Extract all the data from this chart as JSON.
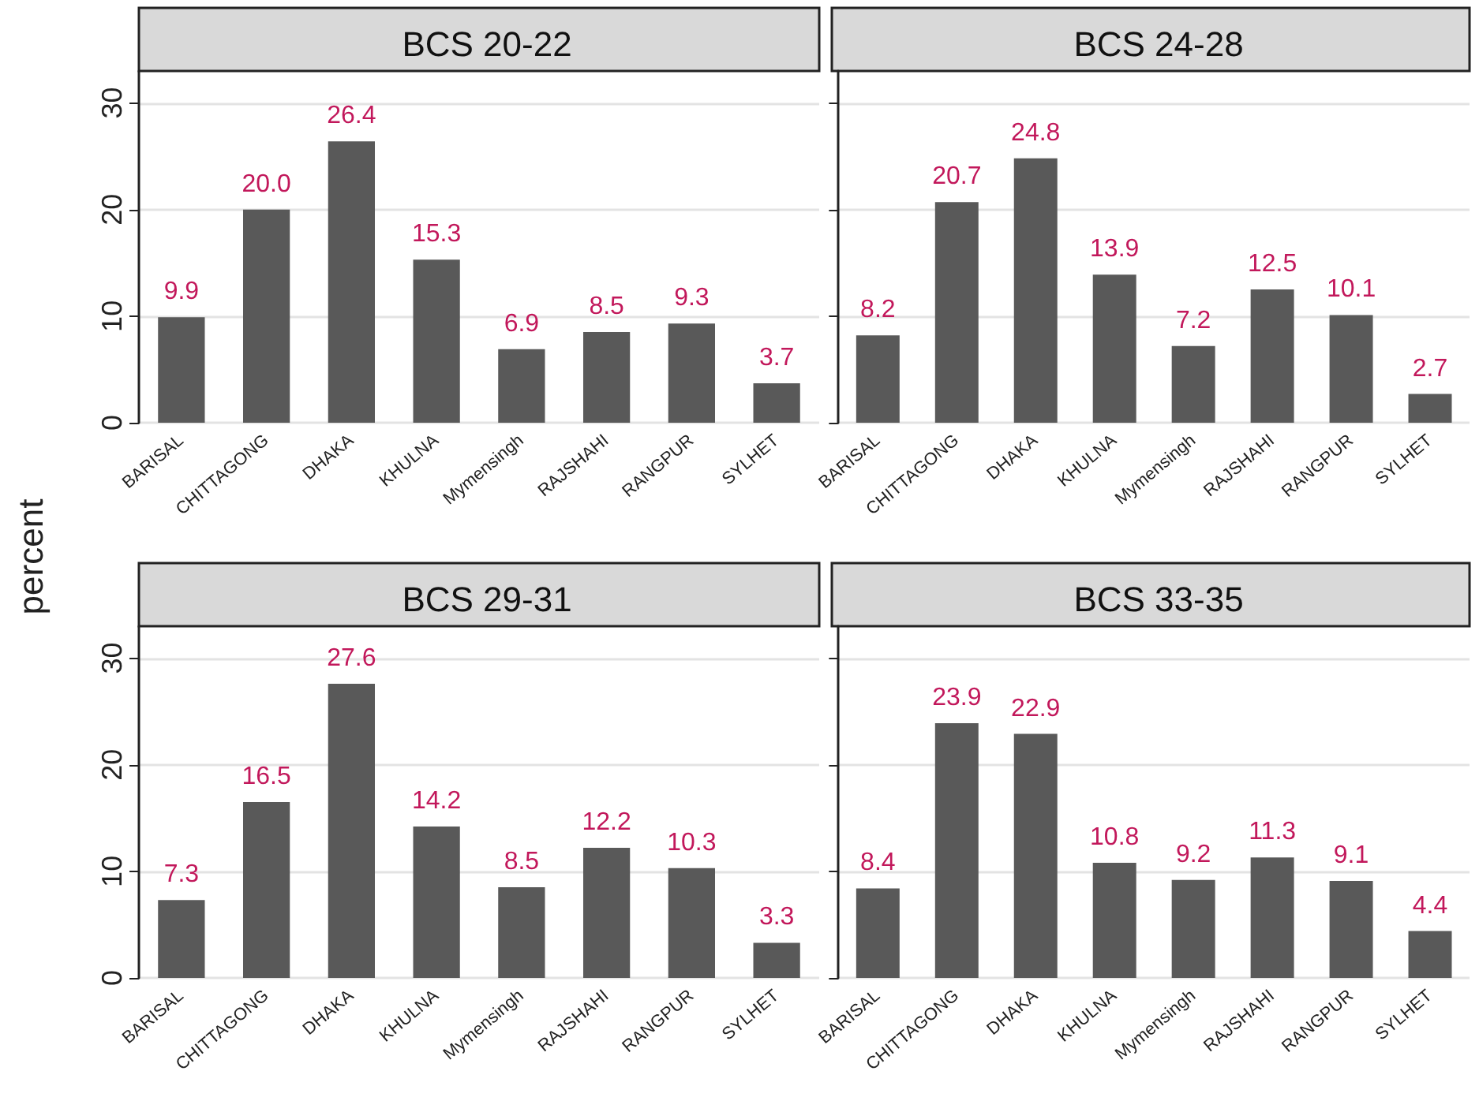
{
  "chart_data": [
    {
      "type": "bar",
      "title": "BCS 20-22",
      "ylabel": "percent",
      "categories": [
        "BARISAL",
        "CHITTAGONG",
        "DHAKA",
        "KHULNA",
        "Mymensingh",
        "RAJSHAHI",
        "RANGPUR",
        "SYLHET"
      ],
      "values": [
        9.9,
        20.0,
        26.4,
        15.3,
        6.9,
        8.5,
        9.3,
        3.7
      ],
      "value_labels": [
        "9.9",
        "20.0",
        "26.4",
        "15.3",
        "6.9",
        "8.5",
        "9.3",
        "3.7"
      ],
      "color": "#595959",
      "ylim": [
        0,
        33
      ],
      "yticks": [
        0,
        10,
        20,
        30
      ],
      "grid": "y"
    },
    {
      "type": "bar",
      "title": "BCS 24-28",
      "categories": [
        "BARISAL",
        "CHITTAGONG",
        "DHAKA",
        "KHULNA",
        "Mymensingh",
        "RAJSHAHI",
        "RANGPUR",
        "SYLHET"
      ],
      "values": [
        8.2,
        20.7,
        24.8,
        13.9,
        7.2,
        12.5,
        10.1,
        2.7
      ],
      "value_labels": [
        "8.2",
        "20.7",
        "24.8",
        "13.9",
        "7.2",
        "12.5",
        "10.1",
        "2.7"
      ],
      "color": "#595959",
      "ylim": [
        0,
        33
      ],
      "yticks": [
        0,
        10,
        20,
        30
      ],
      "grid": "y",
      "tick_labels": "x"
    },
    {
      "type": "bar",
      "title": "BCS 29-31",
      "categories": [
        "BARISAL",
        "CHITTAGONG",
        "DHAKA",
        "KHULNA",
        "Mymensingh",
        "RAJSHAHI",
        "RANGPUR",
        "SYLHET"
      ],
      "values": [
        7.3,
        16.5,
        27.6,
        14.2,
        8.5,
        12.2,
        10.3,
        3.3
      ],
      "value_labels": [
        "7.3",
        "16.5",
        "27.6",
        "14.2",
        "8.5",
        "12.2",
        "10.3",
        "3.3"
      ],
      "color": "#595959",
      "ylim": [
        0,
        33
      ],
      "yticks": [
        0,
        10,
        20,
        30
      ],
      "grid": "y"
    },
    {
      "type": "bar",
      "title": "BCS 33-35",
      "categories": [
        "BARISAL",
        "CHITTAGONG",
        "DHAKA",
        "KHULNA",
        "Mymensingh",
        "RAJSHAHI",
        "RANGPUR",
        "SYLHET"
      ],
      "values": [
        8.4,
        23.9,
        22.9,
        10.8,
        9.2,
        11.3,
        9.1,
        4.4
      ],
      "value_labels": [
        "8.4",
        "23.9",
        "22.9",
        "10.8",
        "9.2",
        "11.3",
        "9.1",
        "4.4"
      ],
      "color": "#595959",
      "ylim": [
        0,
        33
      ],
      "yticks": [
        0,
        10,
        20,
        30
      ],
      "grid": "y",
      "tick_labels": "x"
    }
  ]
}
